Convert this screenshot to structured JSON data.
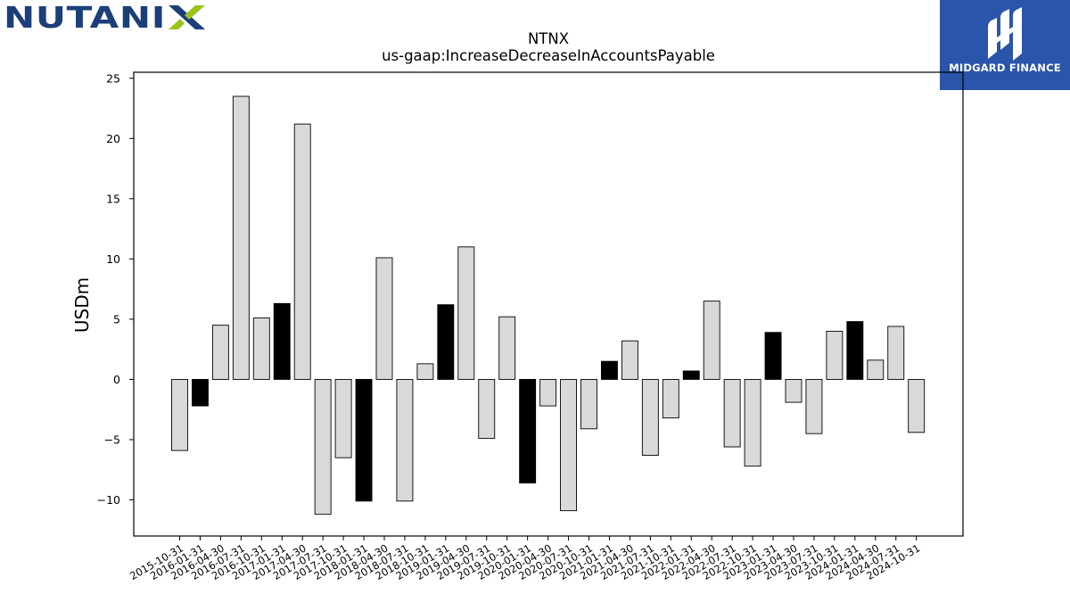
{
  "brand": {
    "logo_text": "NUTANIX",
    "text_color": "#1c3f7a",
    "accent_color": "#9ac31c"
  },
  "badge": {
    "label": "MIDGARD FINANCE",
    "background": "#2b55aa",
    "icon": "midgard-m-icon"
  },
  "colors": {
    "quarter_fill": "#d9d9d9",
    "highlight_fill": "#000000",
    "bar_stroke": "#000000"
  },
  "chart_data": {
    "type": "bar",
    "title": "NTNX",
    "subtitle": "us-gaap:IncreaseDecreaseInAccountsPayable",
    "xlabel": "",
    "ylabel": "USDm",
    "ylim": [
      -13,
      25.5
    ],
    "yticks": [
      -10,
      -5,
      0,
      5,
      10,
      15,
      20,
      25
    ],
    "ytick_labels": [
      "−10",
      "−5",
      "0",
      "5",
      "10",
      "15",
      "20",
      "25"
    ],
    "grid": false,
    "categories": [
      "2015-10-31",
      "2016-01-31",
      "2016-04-30",
      "2016-07-31",
      "2016-10-31",
      "2017-01-31",
      "2017-04-30",
      "2017-07-31",
      "2017-10-31",
      "2018-01-31",
      "2018-04-30",
      "2018-07-31",
      "2018-10-31",
      "2019-01-31",
      "2019-04-30",
      "2019-07-31",
      "2019-10-31",
      "2020-01-31",
      "2020-04-30",
      "2020-07-31",
      "2020-10-31",
      "2021-01-31",
      "2021-04-30",
      "2021-07-31",
      "2021-10-31",
      "2022-01-31",
      "2022-04-30",
      "2022-07-31",
      "2022-10-31",
      "2023-01-31",
      "2023-04-30",
      "2023-07-31",
      "2023-10-31",
      "2024-01-31",
      "2024-04-30",
      "2024-07-31",
      "2024-10-31"
    ],
    "values": [
      -5.9,
      -2.2,
      4.5,
      23.5,
      5.1,
      6.3,
      21.2,
      -11.2,
      -6.5,
      -10.1,
      10.1,
      -10.1,
      1.3,
      6.2,
      11.0,
      -4.9,
      5.2,
      -8.6,
      -2.2,
      -10.9,
      -4.1,
      1.5,
      3.2,
      -6.3,
      -3.2,
      0.7,
      6.5,
      -5.6,
      -7.2,
      3.9,
      -1.9,
      -4.5,
      4.0,
      4.8,
      1.6,
      4.4,
      -4.4
    ],
    "highlighted": [
      false,
      true,
      false,
      false,
      false,
      true,
      false,
      false,
      false,
      true,
      false,
      false,
      false,
      true,
      false,
      false,
      false,
      true,
      false,
      false,
      false,
      true,
      false,
      false,
      false,
      true,
      false,
      false,
      false,
      true,
      false,
      false,
      false,
      true,
      false,
      false,
      false
    ]
  }
}
